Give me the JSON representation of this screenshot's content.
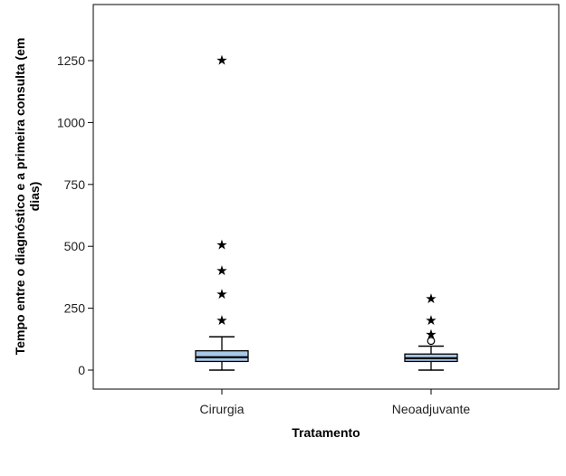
{
  "chart_data": {
    "type": "boxplot",
    "title": "",
    "xlabel": "Tratamento",
    "ylabel_lines": [
      "Tempo entre o diagnóstico e a primeira consulta (em",
      "dias)"
    ],
    "ylim": [
      -75,
      1450
    ],
    "yticks": [
      0,
      250,
      500,
      750,
      1000,
      1250
    ],
    "ytick_labels": [
      "0",
      "250",
      "500",
      "750",
      "1000",
      "1250"
    ],
    "grid": false,
    "box_fill": "#a8c8e8",
    "categories": [
      "Cirurgia",
      "Neoadjuvante"
    ],
    "boxes": [
      {
        "name": "Cirurgia",
        "whisker_low": 0,
        "q1": 35,
        "median": 52,
        "q3": 78,
        "whisker_high": 135,
        "mild_outliers": [],
        "extreme_outliers": [
          205,
          310,
          405,
          510,
          1255
        ]
      },
      {
        "name": "Neoadjuvante",
        "whisker_low": 0,
        "q1": 35,
        "median": 48,
        "q3": 65,
        "whisker_high": 97,
        "mild_outliers": [
          118
        ],
        "extreme_outliers": [
          148,
          205,
          292
        ]
      }
    ]
  }
}
